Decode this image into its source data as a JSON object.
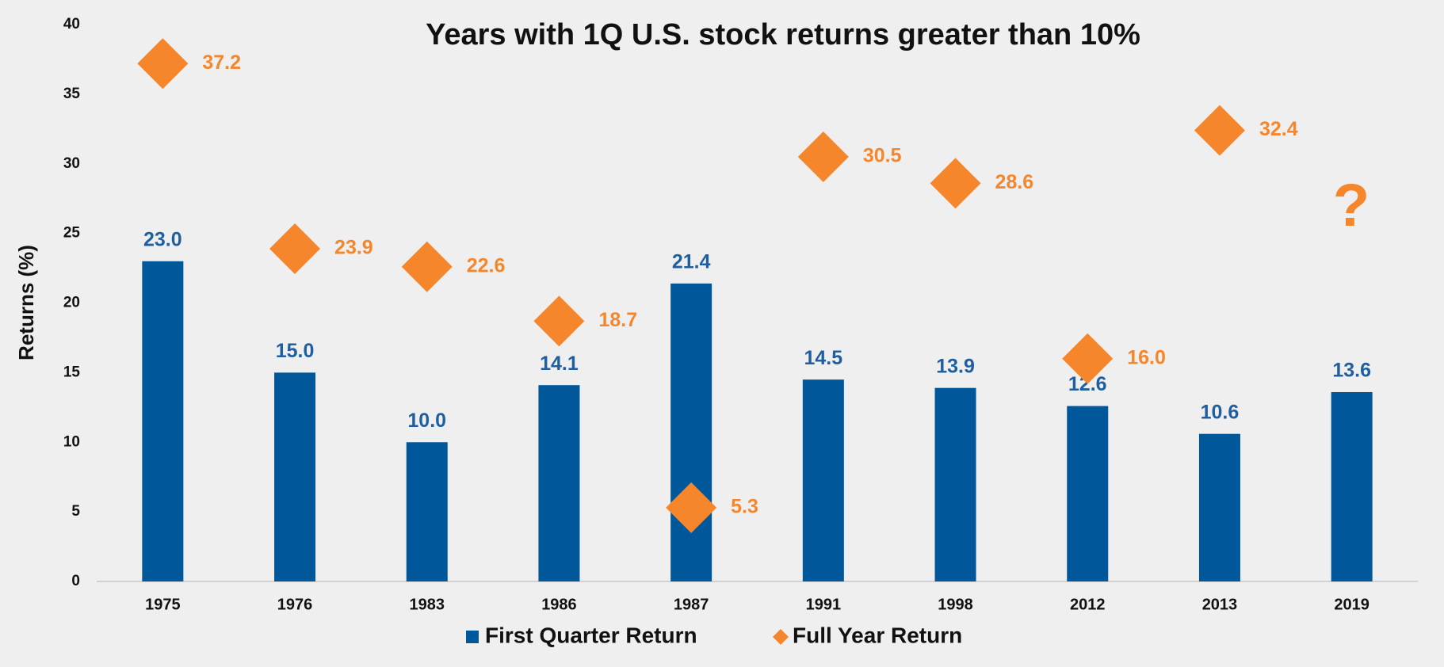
{
  "chart_data": {
    "type": "bar",
    "title": "Years with 1Q U.S. stock returns greater than 10%",
    "y_label": "Returns (%)",
    "categories": [
      "1975",
      "1976",
      "1983",
      "1986",
      "1987",
      "1991",
      "1998",
      "2012",
      "2013",
      "2019"
    ],
    "series": [
      {
        "name": "First Quarter Return",
        "type": "bar",
        "color": "#00579a",
        "values": [
          23.0,
          15.0,
          10.0,
          14.1,
          21.4,
          14.5,
          13.9,
          12.6,
          10.6,
          13.6
        ],
        "value_labels": [
          "23.0",
          "15.0",
          "10.0",
          "14.1",
          "21.4",
          "14.5",
          "13.9",
          "12.6",
          "10.6",
          "13.6"
        ]
      },
      {
        "name": "Full Year Return",
        "type": "scatter",
        "color": "#f5862b",
        "values": [
          37.2,
          23.9,
          22.6,
          18.7,
          5.3,
          30.5,
          28.6,
          16.0,
          32.4,
          null
        ],
        "value_labels": [
          "37.2",
          "23.9",
          "22.6",
          "18.7",
          "5.3",
          "30.5",
          "28.6",
          "16.0",
          "32.4",
          null
        ]
      }
    ],
    "annotation": "?",
    "ylim": [
      0,
      40
    ],
    "yticks": [
      0,
      5,
      10,
      15,
      20,
      25,
      30,
      35,
      40
    ],
    "grid": false,
    "legend": "bottom"
  }
}
